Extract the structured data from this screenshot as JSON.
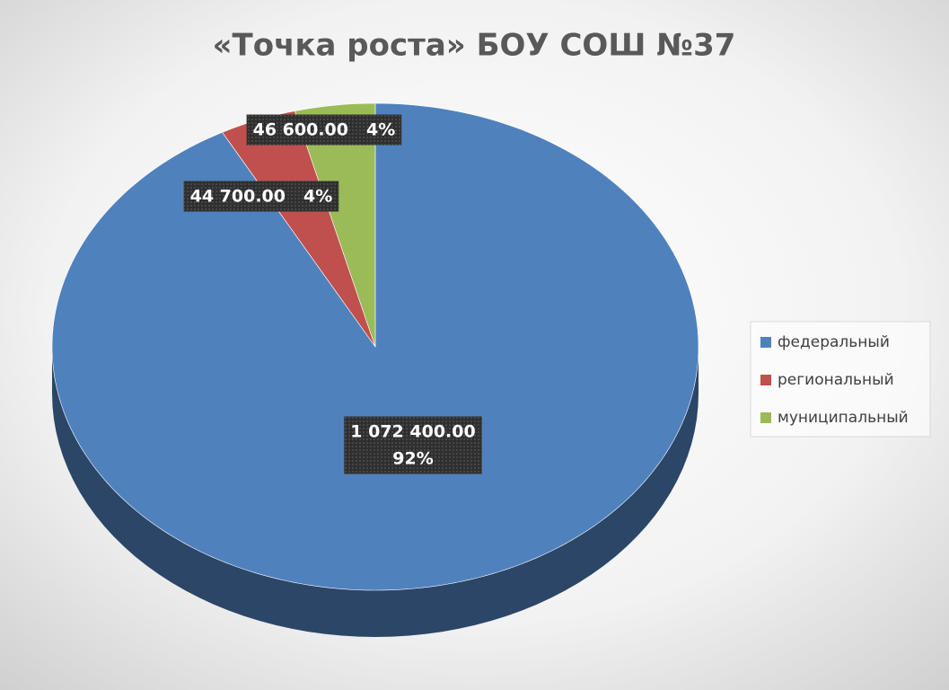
{
  "chart_data": {
    "type": "pie",
    "title": "«Точка роста»   БОУ СОШ №37",
    "categories": [
      "федеральный",
      "региональный",
      "муниципальный"
    ],
    "values": [
      1072400,
      44700,
      46600
    ],
    "value_labels": [
      "1 072 400.00",
      "44 700.00",
      "46 600.00"
    ],
    "percents": [
      {
        "value": 92,
        "label": "92%"
      },
      {
        "value": 4,
        "label": "4%"
      },
      {
        "value": 4,
        "label": "4%"
      }
    ],
    "colors": [
      "#4f81bd",
      "#c0504d",
      "#9bbb59"
    ],
    "legend": "right"
  }
}
